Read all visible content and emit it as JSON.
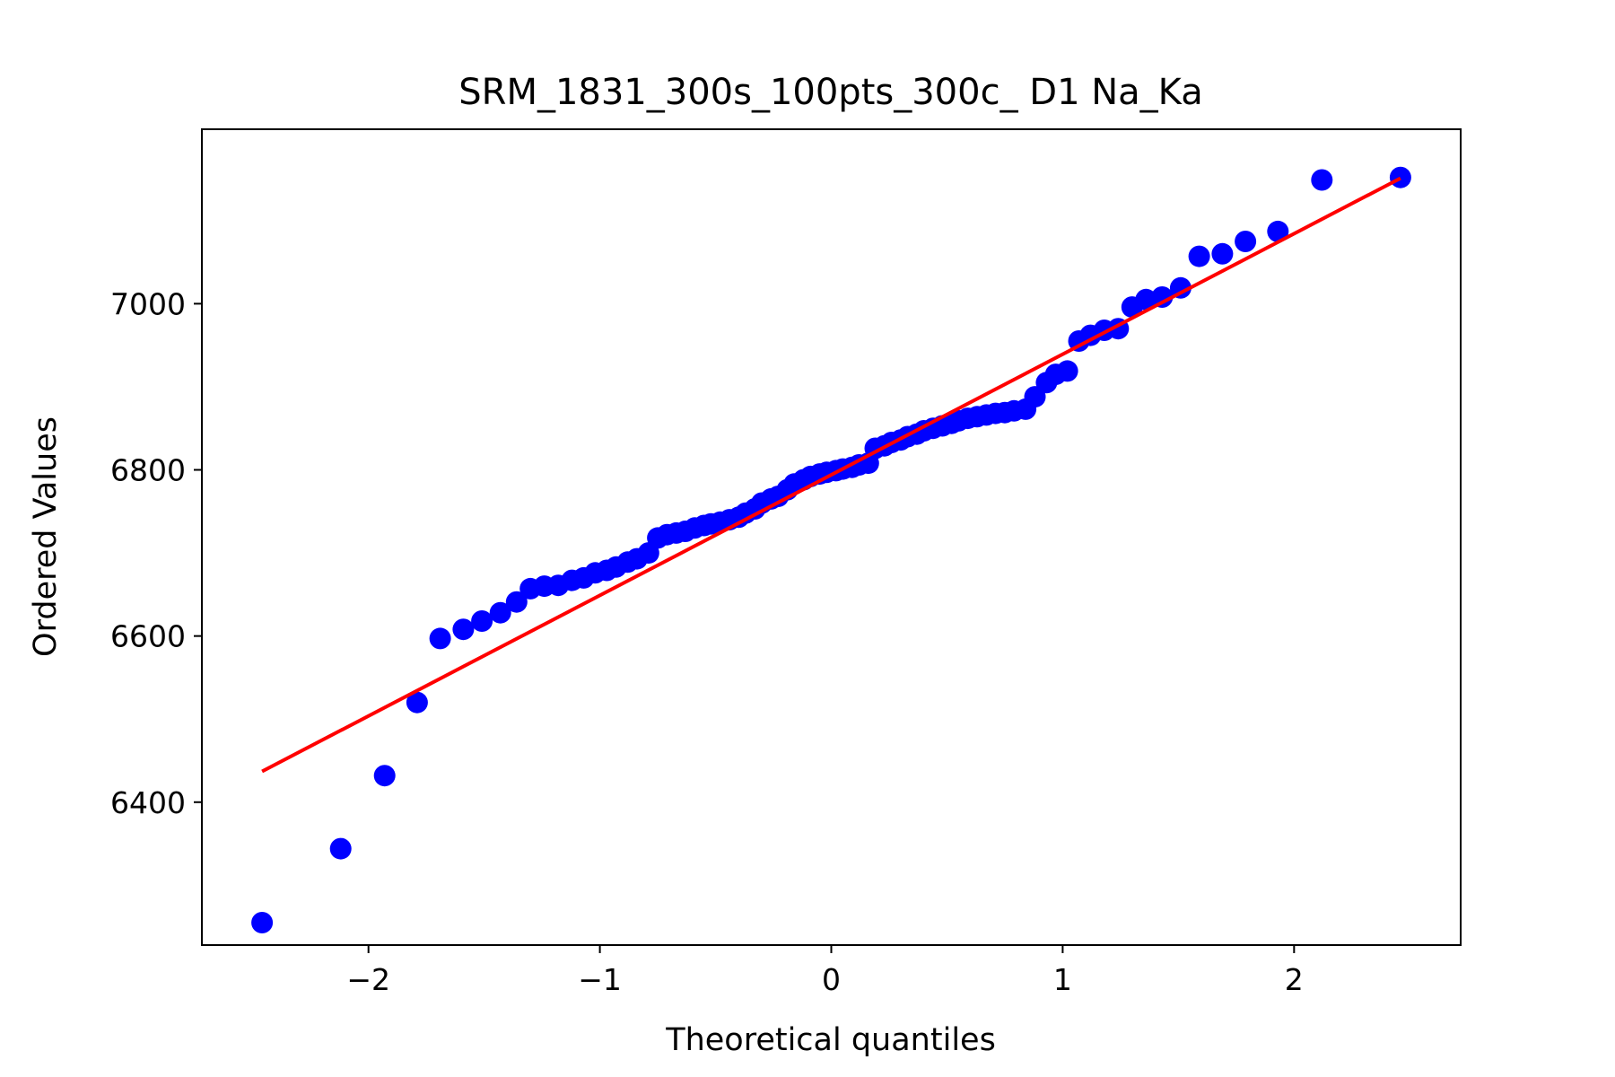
{
  "chart_data": {
    "type": "scatter",
    "title": "SRM_1831_300s_100pts_300c_ D1 Na_Ka",
    "xlabel": "Theoretical quantiles",
    "ylabel": "Ordered Values",
    "xlim": [
      -2.72,
      2.72
    ],
    "ylim": [
      6228,
      7210
    ],
    "xticks": [
      -2,
      -1,
      0,
      1,
      2
    ],
    "xtick_labels": [
      "−2",
      "−1",
      "0",
      "1",
      "2"
    ],
    "yticks": [
      6400,
      6600,
      6800,
      7000
    ],
    "ytick_labels": [
      "6400",
      "6600",
      "6800",
      "7000"
    ],
    "grid": false,
    "colors": {
      "points": "#0000ff",
      "fit_line": "#ff0000"
    },
    "series": [
      {
        "values_x": [
          -2.46,
          -2.12,
          -1.93,
          -1.79,
          -1.69,
          -1.59,
          -1.51,
          -1.43,
          -1.36,
          -1.3,
          -1.24,
          -1.18,
          -1.12,
          -1.07,
          -1.02,
          -0.97,
          -0.93,
          -0.88,
          -0.84,
          -0.79,
          -0.75,
          -0.71,
          -0.67,
          -0.63,
          -0.59,
          -0.55,
          -0.52,
          -0.48,
          -0.44,
          -0.4,
          -0.37,
          -0.33,
          -0.3,
          -0.26,
          -0.23,
          -0.19,
          -0.16,
          -0.12,
          -0.09,
          -0.05,
          -0.02,
          0.02,
          0.05,
          0.09,
          0.12,
          0.16,
          0.19,
          0.23,
          0.26,
          0.3,
          0.33,
          0.37,
          0.4,
          0.44,
          0.48,
          0.52,
          0.55,
          0.59,
          0.63,
          0.67,
          0.71,
          0.75,
          0.79,
          0.84,
          0.88,
          0.93,
          0.97,
          1.02,
          1.07,
          1.12,
          1.18,
          1.24,
          1.3,
          1.36,
          1.43,
          1.51,
          1.59,
          1.69,
          1.79,
          1.93,
          2.12,
          2.46
        ],
        "values_y": [
          6255,
          6344,
          6432,
          6520,
          6597,
          6608,
          6618,
          6628,
          6641,
          6657,
          6660,
          6661,
          6667,
          6670,
          6676,
          6679,
          6683,
          6689,
          6693,
          6700,
          6718,
          6722,
          6724,
          6726,
          6730,
          6733,
          6735,
          6737,
          6740,
          6743,
          6748,
          6753,
          6760,
          6765,
          6768,
          6776,
          6783,
          6788,
          6792,
          6795,
          6797,
          6799,
          6801,
          6803,
          6806,
          6808,
          6826,
          6829,
          6833,
          6836,
          6840,
          6843,
          6847,
          6850,
          6853,
          6856,
          6859,
          6862,
          6864,
          6866,
          6868,
          6869,
          6871,
          6873,
          6888,
          6905,
          6915,
          6919,
          6955,
          6962,
          6968,
          6970,
          6996,
          7005,
          7008,
          7019,
          7057,
          7060,
          7075,
          7087,
          7149,
          7152
        ]
      }
    ],
    "fit_line": {
      "x": [
        -2.46,
        2.46
      ],
      "y": [
        6437,
        7151
      ]
    }
  }
}
